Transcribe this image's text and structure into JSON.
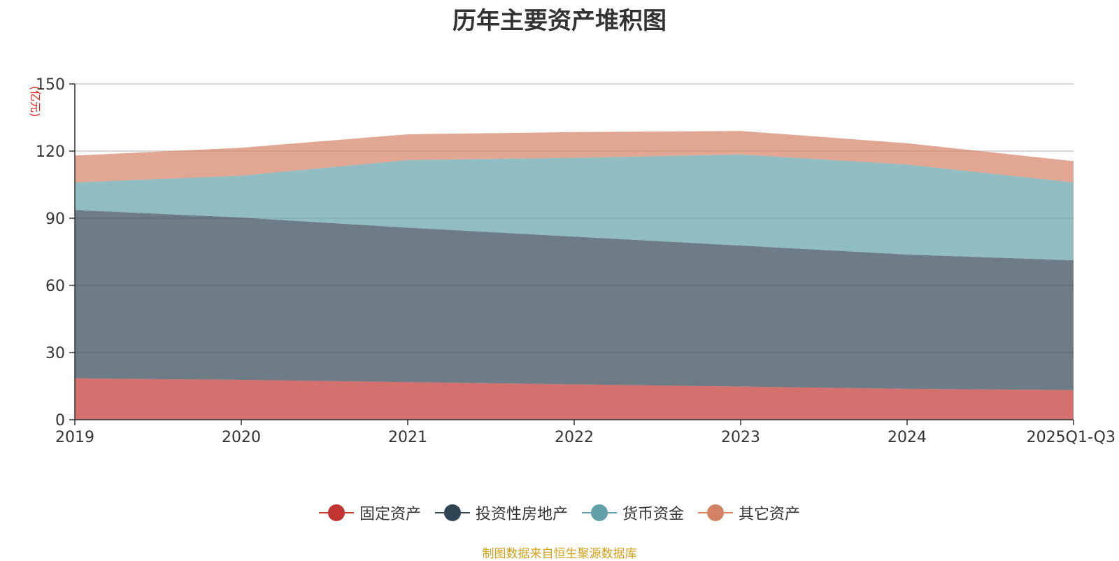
{
  "chart_data": {
    "type": "area",
    "stacked": true,
    "title": "历年主要资产堆积图",
    "unit": "(亿元)",
    "categories": [
      "2019",
      "2020",
      "2021",
      "2022",
      "2023",
      "2024",
      "2025Q1-Q3"
    ],
    "ylim": [
      0,
      150
    ],
    "yticks": [
      "0",
      "30",
      "60",
      "90",
      "120",
      "150"
    ],
    "grid": true,
    "legend_position": "bottom",
    "series": [
      {
        "name": "固定资产",
        "color": "#c23531",
        "values": [
          18.5,
          17.8,
          16.8,
          15.8,
          14.8,
          13.8,
          13.2
        ]
      },
      {
        "name": "投资性房地产",
        "color": "#2f4554",
        "values": [
          75.2,
          72.5,
          69.0,
          66.0,
          63.0,
          60.0,
          58.0
        ]
      },
      {
        "name": "货币资金",
        "color": "#61a0a8",
        "values": [
          12.3,
          18.7,
          30.2,
          35.2,
          40.7,
          40.2,
          34.8
        ]
      },
      {
        "name": "其它资产",
        "color": "#d48265",
        "values": [
          12.0,
          12.5,
          11.5,
          11.5,
          10.5,
          9.5,
          9.5
        ]
      }
    ],
    "source": "制图数据来自恒生聚源数据库"
  }
}
